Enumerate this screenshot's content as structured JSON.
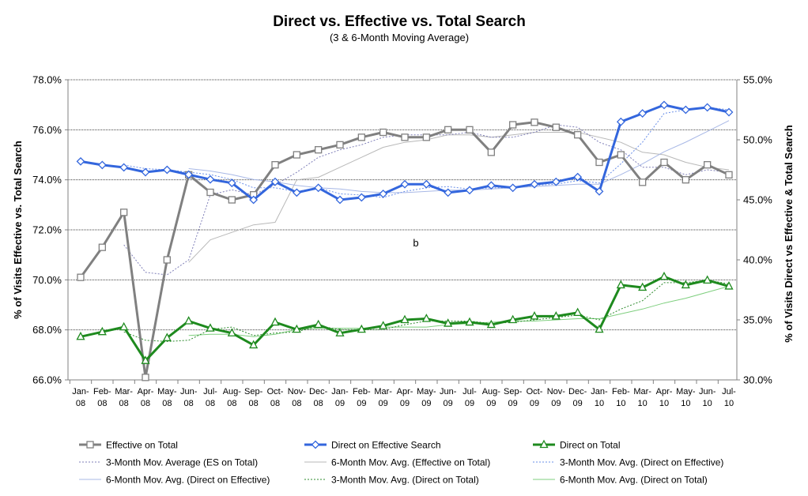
{
  "chart_data": {
    "type": "line",
    "title": "Direct vs. Effective vs. Total Search",
    "subtitle": "(3 & 6-Month Moving Average)",
    "ylabel_left": "% of Visits Effective vs. Total Search",
    "ylabel_right": "% of Visits Direct vs Effective & Total Search",
    "annotation": "b",
    "grid": true,
    "legend_placement": "bottom",
    "ylim_left": [
      66,
      78
    ],
    "ylim_right": [
      30,
      55
    ],
    "yticks_left": [
      "66.0%",
      "68.0%",
      "70.0%",
      "72.0%",
      "74.0%",
      "76.0%",
      "78.0%"
    ],
    "yticks_right": [
      "30.0%",
      "35.0%",
      "40.0%",
      "45.0%",
      "50.0%",
      "55.0%"
    ],
    "categories": [
      [
        "Jan-",
        "08"
      ],
      [
        "Feb-",
        "08"
      ],
      [
        "Mar-",
        "08"
      ],
      [
        "Apr-",
        "08"
      ],
      [
        "May-",
        "08"
      ],
      [
        "Jun-",
        "08"
      ],
      [
        "Jul-",
        "08"
      ],
      [
        "Aug-",
        "08"
      ],
      [
        "Sep-",
        "08"
      ],
      [
        "Oct-",
        "08"
      ],
      [
        "Nov-",
        "08"
      ],
      [
        "Dec-",
        "08"
      ],
      [
        "Jan-",
        "09"
      ],
      [
        "Feb-",
        "09"
      ],
      [
        "Mar-",
        "09"
      ],
      [
        "Apr-",
        "09"
      ],
      [
        "May-",
        "09"
      ],
      [
        "Jun-",
        "09"
      ],
      [
        "Jul-",
        "09"
      ],
      [
        "Aug-",
        "09"
      ],
      [
        "Sep-",
        "09"
      ],
      [
        "Oct-",
        "09"
      ],
      [
        "Nov-",
        "09"
      ],
      [
        "Dec-",
        "09"
      ],
      [
        "Jan-",
        "10"
      ],
      [
        "Feb-",
        "10"
      ],
      [
        "Mar-",
        "10"
      ],
      [
        "Apr-",
        "10"
      ],
      [
        "May-",
        "10"
      ],
      [
        "Jun-",
        "10"
      ],
      [
        "Jul-",
        "10"
      ]
    ],
    "series": [
      {
        "name": "Effective on Total",
        "axis": "left",
        "color": "#808080",
        "width": 3,
        "marker": "square",
        "dash": "",
        "values": [
          70.1,
          71.3,
          72.7,
          66.1,
          70.8,
          74.2,
          73.5,
          73.2,
          73.4,
          74.6,
          75.0,
          75.2,
          75.4,
          75.7,
          75.9,
          75.7,
          75.7,
          76.0,
          76.0,
          75.1,
          76.2,
          76.3,
          76.1,
          75.8,
          74.7,
          75.0,
          73.9,
          74.7,
          74.0,
          74.6,
          74.2
        ]
      },
      {
        "name": "Direct on Effective Search",
        "axis": "right",
        "color": "#3366dd",
        "width": 3,
        "marker": "diamond",
        "dash": "",
        "values": [
          48.2,
          47.9,
          47.7,
          47.3,
          47.5,
          47.1,
          46.7,
          46.4,
          45.0,
          46.5,
          45.6,
          46.0,
          45.0,
          45.2,
          45.5,
          46.3,
          46.3,
          45.6,
          45.8,
          46.2,
          46.0,
          46.3,
          46.5,
          46.9,
          45.7,
          51.5,
          52.2,
          52.9,
          52.5,
          52.7,
          52.3
        ]
      },
      {
        "name": "Direct on Total",
        "axis": "right",
        "color": "#1e8a1e",
        "width": 3,
        "marker": "triangle",
        "dash": "",
        "values": [
          33.6,
          34.0,
          34.4,
          31.6,
          33.5,
          34.9,
          34.3,
          33.9,
          32.9,
          34.8,
          34.2,
          34.6,
          33.9,
          34.2,
          34.5,
          35.0,
          35.1,
          34.7,
          34.8,
          34.6,
          35.0,
          35.3,
          35.3,
          35.6,
          34.2,
          37.9,
          37.7,
          38.6,
          37.9,
          38.3,
          37.8
        ]
      },
      {
        "name": "3-Month Mov. Average (ES on Total)",
        "axis": "left",
        "color": "#7f7fb8",
        "width": 1,
        "marker": "none",
        "dash": "2,2",
        "values": [
          null,
          null,
          71.4,
          70.3,
          70.2,
          70.8,
          73.4,
          73.6,
          73.4,
          73.8,
          74.3,
          74.9,
          75.2,
          75.4,
          75.7,
          75.8,
          75.8,
          75.8,
          75.9,
          75.7,
          75.7,
          75.9,
          76.2,
          76.1,
          75.5,
          75.2,
          74.5,
          74.5,
          74.2,
          74.4,
          74.3
        ]
      },
      {
        "name": "6-Month Mov. Avg. (Effective on Total)",
        "axis": "left",
        "color": "#b8b8b8",
        "width": 1,
        "marker": "none",
        "dash": "",
        "values": [
          null,
          null,
          null,
          null,
          null,
          70.7,
          71.6,
          71.9,
          72.2,
          72.3,
          74.0,
          74.1,
          74.5,
          74.9,
          75.3,
          75.5,
          75.6,
          75.8,
          75.8,
          75.7,
          75.8,
          75.9,
          75.9,
          75.9,
          75.7,
          75.5,
          75.1,
          75.0,
          74.7,
          74.5,
          74.4
        ]
      },
      {
        "name": "3-Month Mov. Avg. (Direct on Effective)",
        "axis": "right",
        "color": "#6a8fe8",
        "width": 1,
        "marker": "none",
        "dash": "2,2",
        "values": [
          null,
          null,
          47.9,
          47.6,
          47.5,
          47.3,
          47.1,
          46.7,
          46.0,
          46.0,
          45.7,
          46.0,
          45.5,
          45.4,
          45.2,
          45.7,
          46.0,
          46.1,
          45.9,
          46.0,
          46.0,
          46.2,
          46.3,
          46.6,
          46.4,
          48.0,
          49.8,
          52.2,
          52.5,
          52.7,
          52.5
        ]
      },
      {
        "name": "6-Month Mov. Avg. (Direct on Effective)",
        "axis": "right",
        "color": "#a8b8e6",
        "width": 1,
        "marker": "none",
        "dash": "",
        "values": [
          null,
          null,
          null,
          null,
          null,
          47.6,
          47.4,
          47.1,
          46.7,
          46.5,
          46.2,
          46.0,
          45.9,
          45.7,
          45.6,
          45.6,
          45.7,
          45.8,
          45.8,
          45.9,
          46.0,
          46.1,
          46.2,
          46.3,
          46.3,
          47.1,
          48.0,
          49.0,
          49.8,
          50.7,
          51.6
        ]
      },
      {
        "name": "3-Month Mov. Avg. (Direct on Total)",
        "axis": "right",
        "color": "#2e8b2e",
        "width": 1,
        "marker": "none",
        "dash": "2,2",
        "values": [
          null,
          null,
          34.0,
          33.3,
          33.2,
          33.3,
          34.2,
          34.4,
          33.7,
          33.9,
          34.0,
          34.5,
          34.2,
          34.2,
          34.2,
          34.6,
          34.9,
          34.9,
          34.9,
          34.7,
          34.8,
          35.0,
          35.2,
          35.4,
          35.0,
          35.9,
          36.6,
          38.1,
          38.1,
          38.3,
          38.0
        ]
      },
      {
        "name": "6-Month Mov. Avg. (Direct on Total)",
        "axis": "right",
        "color": "#7fcf7f",
        "width": 1,
        "marker": "none",
        "dash": "",
        "values": [
          null,
          null,
          null,
          null,
          null,
          33.7,
          33.8,
          33.8,
          33.6,
          33.8,
          34.2,
          34.3,
          34.3,
          34.3,
          34.4,
          34.4,
          34.4,
          34.6,
          34.7,
          34.8,
          34.9,
          34.9,
          35.0,
          35.1,
          35.1,
          35.5,
          35.9,
          36.4,
          36.8,
          37.3,
          37.8
        ]
      }
    ]
  }
}
